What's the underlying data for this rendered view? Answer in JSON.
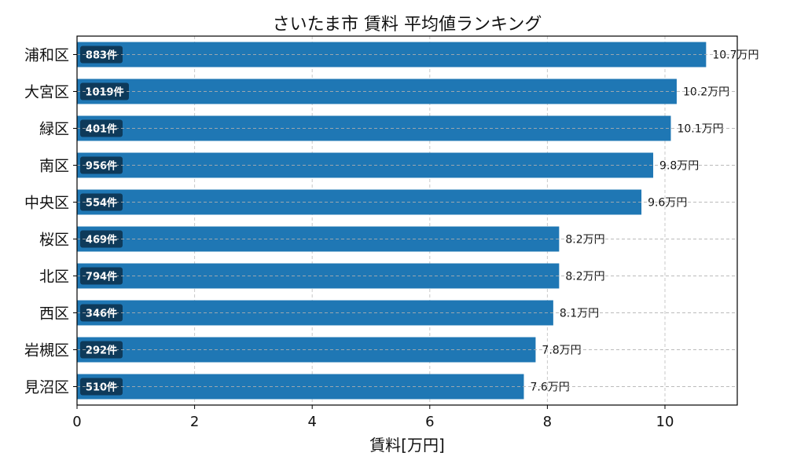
{
  "chart_data": {
    "type": "bar",
    "orientation": "horizontal",
    "title": "さいたま市 賃料 平均値ランキング",
    "xlabel": "賃料[万円]",
    "ylabel": "",
    "xlim": [
      0,
      11.23
    ],
    "xticks": [
      0,
      2,
      4,
      6,
      8,
      10
    ],
    "xtick_labels": [
      "0",
      "2",
      "4",
      "6",
      "8",
      "10"
    ],
    "grid": true,
    "bar_color": "#1f77b4",
    "count_badge_color": "#0e3a5a",
    "categories": [
      "浦和区",
      "大宮区",
      "緑区",
      "南区",
      "中央区",
      "桜区",
      "北区",
      "西区",
      "岩槻区",
      "見沼区"
    ],
    "values": [
      10.7,
      10.2,
      10.1,
      9.8,
      9.6,
      8.2,
      8.2,
      8.1,
      7.8,
      7.6
    ],
    "value_labels": [
      "10.7万円",
      "10.2万円",
      "10.1万円",
      "9.8万円",
      "9.6万円",
      "8.2万円",
      "8.2万円",
      "8.1万円",
      "7.8万円",
      "7.6万円"
    ],
    "count_labels": [
      "883件",
      "1019件",
      "401件",
      "956件",
      "554件",
      "469件",
      "794件",
      "346件",
      "292件",
      "510件"
    ]
  }
}
